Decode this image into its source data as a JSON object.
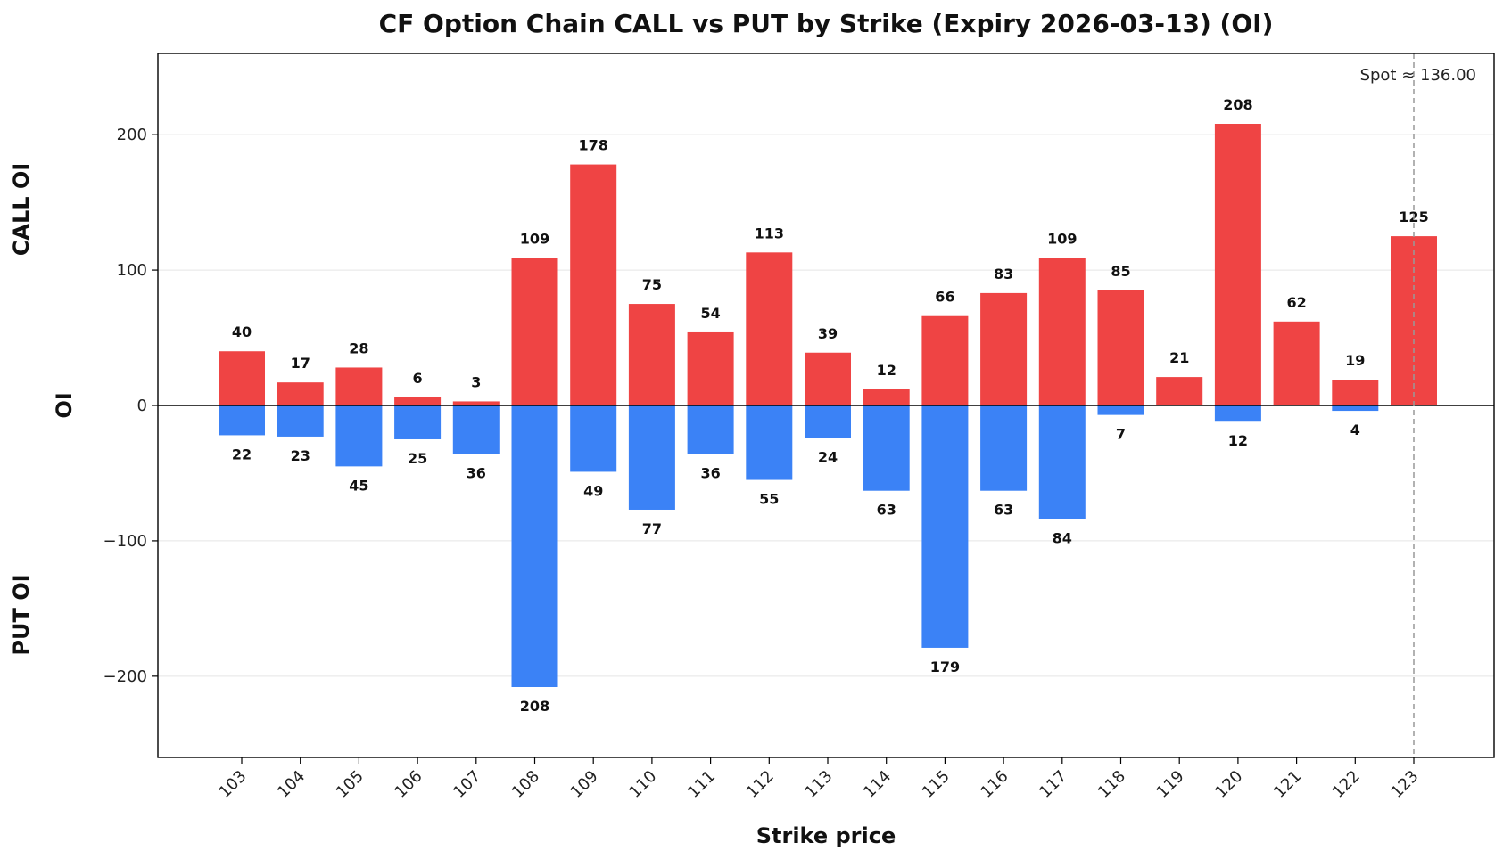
{
  "chart_data": {
    "type": "bar",
    "title": "CF Option Chain CALL vs PUT by Strike (Expiry 2026-03-13) (OI)",
    "xlabel": "Strike price",
    "ylabel": "OI",
    "ylabel_upper": "CALL OI",
    "ylabel_lower": "PUT OI",
    "ylim": [
      -260,
      260
    ],
    "yticks": [
      -200,
      -100,
      0,
      100,
      200
    ],
    "ytick_labels": [
      "−200",
      "−100",
      "0",
      "100",
      "200"
    ],
    "grid": true,
    "categories": [
      "103",
      "104",
      "105",
      "106",
      "107",
      "108",
      "109",
      "110",
      "111",
      "112",
      "113",
      "114",
      "115",
      "116",
      "117",
      "118",
      "119",
      "120",
      "121",
      "122",
      "123"
    ],
    "series": [
      {
        "color": "#ef4444",
        "values": [
          40,
          17,
          28,
          6,
          3,
          109,
          178,
          75,
          54,
          113,
          39,
          12,
          66,
          83,
          109,
          85,
          21,
          208,
          62,
          19,
          125
        ]
      },
      {
        "color": "#3b82f6",
        "values": [
          22,
          23,
          45,
          25,
          36,
          208,
          49,
          77,
          36,
          55,
          24,
          63,
          179,
          63,
          84,
          7,
          0,
          12,
          0,
          4,
          0
        ]
      }
    ],
    "spot": {
      "text": "Spot ≈ 136.00",
      "strike_line": "123"
    }
  }
}
